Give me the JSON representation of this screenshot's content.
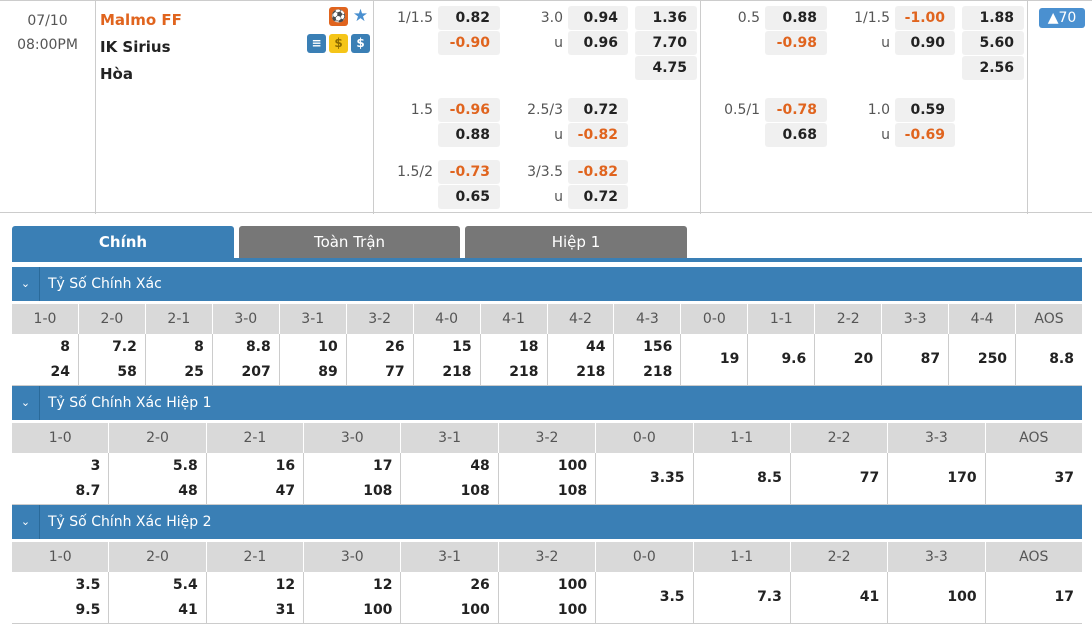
{
  "match": {
    "date": "07/10",
    "time": "08:00PM",
    "home": "Malmo FF",
    "away": "IK Sirius",
    "draw": "Hòa",
    "home_icons": [
      "live-player-icon",
      "star-icon"
    ],
    "away_icons": [
      "stats-icon",
      "coin-icon",
      "dollar-icon"
    ]
  },
  "more_badge": "▲70",
  "colors": {
    "accent": "#3a7fb5",
    "negative": "#e0641e",
    "tab_inactive": "#777777"
  },
  "odds_full": [
    {
      "hdp": "1/1.5",
      "hdp_vals": [
        "0.82",
        "-0.90"
      ],
      "ou": "3.0",
      "ou_u": "u",
      "ou_vals": [
        "0.94",
        "0.96"
      ],
      "x12": [
        "1.36",
        "7.70",
        "4.75"
      ]
    },
    {
      "hdp": "1.5",
      "hdp_vals": [
        "-0.96",
        "0.88"
      ],
      "ou": "2.5/3",
      "ou_u": "u",
      "ou_vals": [
        "0.72",
        "-0.82"
      ]
    },
    {
      "hdp": "1.5/2",
      "hdp_vals": [
        "-0.73",
        "0.65"
      ],
      "ou": "3/3.5",
      "ou_u": "u",
      "ou_vals": [
        "-0.82",
        "0.72"
      ]
    }
  ],
  "odds_half": [
    {
      "hdp": "0.5",
      "hdp_vals": [
        "0.88",
        "-0.98"
      ],
      "ou": "1/1.5",
      "ou_u": "u",
      "ou_vals": [
        "-1.00",
        "0.90"
      ],
      "x12": [
        "1.88",
        "5.60",
        "2.56"
      ]
    },
    {
      "hdp": "0.5/1",
      "hdp_vals": [
        "-0.78",
        "0.68"
      ],
      "ou": "1.0",
      "ou_u": "u",
      "ou_vals": [
        "0.59",
        "-0.69"
      ]
    }
  ],
  "tabs": [
    {
      "label": "Chính",
      "active": true
    },
    {
      "label": "Toàn Trận"
    },
    {
      "label": "Hiệp 1"
    }
  ],
  "sections": [
    {
      "title": "Tỷ Số Chính Xác",
      "headers": [
        "1-0",
        "2-0",
        "2-1",
        "3-0",
        "3-1",
        "3-2",
        "4-0",
        "4-1",
        "4-2",
        "4-3",
        "0-0",
        "1-1",
        "2-2",
        "3-3",
        "4-4",
        "AOS"
      ],
      "values": [
        [
          "8",
          "24"
        ],
        [
          "7.2",
          "58"
        ],
        [
          "8",
          "25"
        ],
        [
          "8.8",
          "207"
        ],
        [
          "10",
          "89"
        ],
        [
          "26",
          "77"
        ],
        [
          "15",
          "218"
        ],
        [
          "18",
          "218"
        ],
        [
          "44",
          "218"
        ],
        [
          "156",
          "218"
        ],
        [
          "19"
        ],
        [
          "9.6"
        ],
        [
          "20"
        ],
        [
          "87"
        ],
        [
          "250"
        ],
        [
          "8.8"
        ]
      ]
    },
    {
      "title": "Tỷ Số Chính Xác Hiệp 1",
      "headers": [
        "1-0",
        "2-0",
        "2-1",
        "3-0",
        "3-1",
        "3-2",
        "0-0",
        "1-1",
        "2-2",
        "3-3",
        "AOS"
      ],
      "values": [
        [
          "3",
          "8.7"
        ],
        [
          "5.8",
          "48"
        ],
        [
          "16",
          "47"
        ],
        [
          "17",
          "108"
        ],
        [
          "48",
          "108"
        ],
        [
          "100",
          "108"
        ],
        [
          "3.35"
        ],
        [
          "8.5"
        ],
        [
          "77"
        ],
        [
          "170"
        ],
        [
          "37"
        ]
      ]
    },
    {
      "title": "Tỷ Số Chính Xác Hiệp 2",
      "headers": [
        "1-0",
        "2-0",
        "2-1",
        "3-0",
        "3-1",
        "3-2",
        "0-0",
        "1-1",
        "2-2",
        "3-3",
        "AOS"
      ],
      "values": [
        [
          "3.5",
          "9.5"
        ],
        [
          "5.4",
          "41"
        ],
        [
          "12",
          "31"
        ],
        [
          "12",
          "100"
        ],
        [
          "26",
          "100"
        ],
        [
          "100",
          "100"
        ],
        [
          "3.5"
        ],
        [
          "7.3"
        ],
        [
          "41"
        ],
        [
          "100"
        ],
        [
          "17"
        ]
      ]
    }
  ]
}
